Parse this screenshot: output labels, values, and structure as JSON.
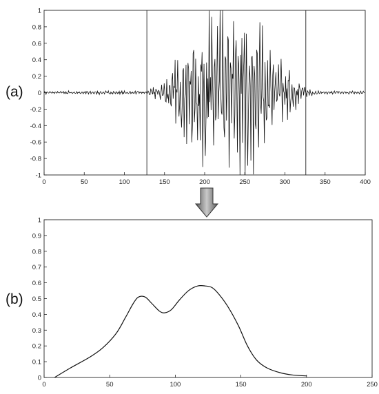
{
  "panel_labels": {
    "a": "(a)",
    "b": "(b)"
  },
  "chart_data": [
    {
      "type": "line",
      "panel": "(a)",
      "title": "",
      "xlabel": "",
      "ylabel": "",
      "xlim": [
        0,
        400
      ],
      "ylim": [
        -1,
        1
      ],
      "x_ticks": [
        0,
        50,
        100,
        150,
        200,
        250,
        300,
        350,
        400
      ],
      "y_ticks": [
        -1,
        -0.8,
        -0.6,
        -0.4,
        -0.2,
        0,
        0.2,
        0.4,
        0.6,
        0.8,
        1
      ],
      "x_tick_labels": [
        "0",
        "50",
        "100",
        "150",
        "200",
        "250",
        "300",
        "350",
        "400"
      ],
      "y_tick_labels": [
        "-1",
        "-0.8",
        "-0.6",
        "-0.4",
        "-0.2",
        "0",
        "0.2",
        "0.4",
        "0.6",
        "0.8",
        "1"
      ],
      "grid": false,
      "markers_x": [
        128,
        326
      ],
      "series": [
        {
          "envelope_x": [
            0,
            128,
            140,
            150,
            160,
            170,
            180,
            190,
            200,
            210,
            220,
            230,
            240,
            250,
            260,
            270,
            280,
            290,
            300,
            310,
            320,
            330,
            340,
            400
          ],
          "envelope_amp": [
            0.02,
            0.02,
            0.08,
            0.15,
            0.28,
            0.45,
            0.6,
            0.75,
            0.9,
            0.95,
            0.9,
            0.9,
            1.0,
            1.0,
            0.95,
            0.85,
            0.7,
            0.5,
            0.35,
            0.22,
            0.12,
            0.05,
            0.02,
            0.02
          ]
        }
      ]
    },
    {
      "type": "line",
      "panel": "(b)",
      "title": "",
      "xlabel": "",
      "ylabel": "",
      "xlim": [
        0,
        250
      ],
      "ylim": [
        0,
        1
      ],
      "x_ticks": [
        0,
        50,
        100,
        150,
        200,
        250
      ],
      "y_ticks": [
        0,
        0.1,
        0.2,
        0.3,
        0.4,
        0.5,
        0.6,
        0.7,
        0.8,
        0.9,
        1
      ],
      "x_tick_labels": [
        "0",
        "50",
        "100",
        "150",
        "200",
        "250"
      ],
      "y_tick_labels": [
        "0",
        "0.1",
        "0.2",
        "0.3",
        "0.4",
        "0.5",
        "0.6",
        "0.7",
        "0.8",
        "0.9",
        "1"
      ],
      "grid": false,
      "series": [
        {
          "x": [
            8,
            20,
            35,
            45,
            55,
            62,
            68,
            72,
            77,
            82,
            88,
            92,
            97,
            103,
            110,
            117,
            123,
            128,
            133,
            140,
            148,
            155,
            162,
            170,
            180,
            190,
            200
          ],
          "y": [
            0.0,
            0.06,
            0.13,
            0.19,
            0.28,
            0.38,
            0.47,
            0.51,
            0.51,
            0.47,
            0.42,
            0.41,
            0.43,
            0.49,
            0.55,
            0.58,
            0.58,
            0.57,
            0.53,
            0.45,
            0.33,
            0.2,
            0.11,
            0.06,
            0.03,
            0.015,
            0.01
          ]
        }
      ]
    }
  ]
}
